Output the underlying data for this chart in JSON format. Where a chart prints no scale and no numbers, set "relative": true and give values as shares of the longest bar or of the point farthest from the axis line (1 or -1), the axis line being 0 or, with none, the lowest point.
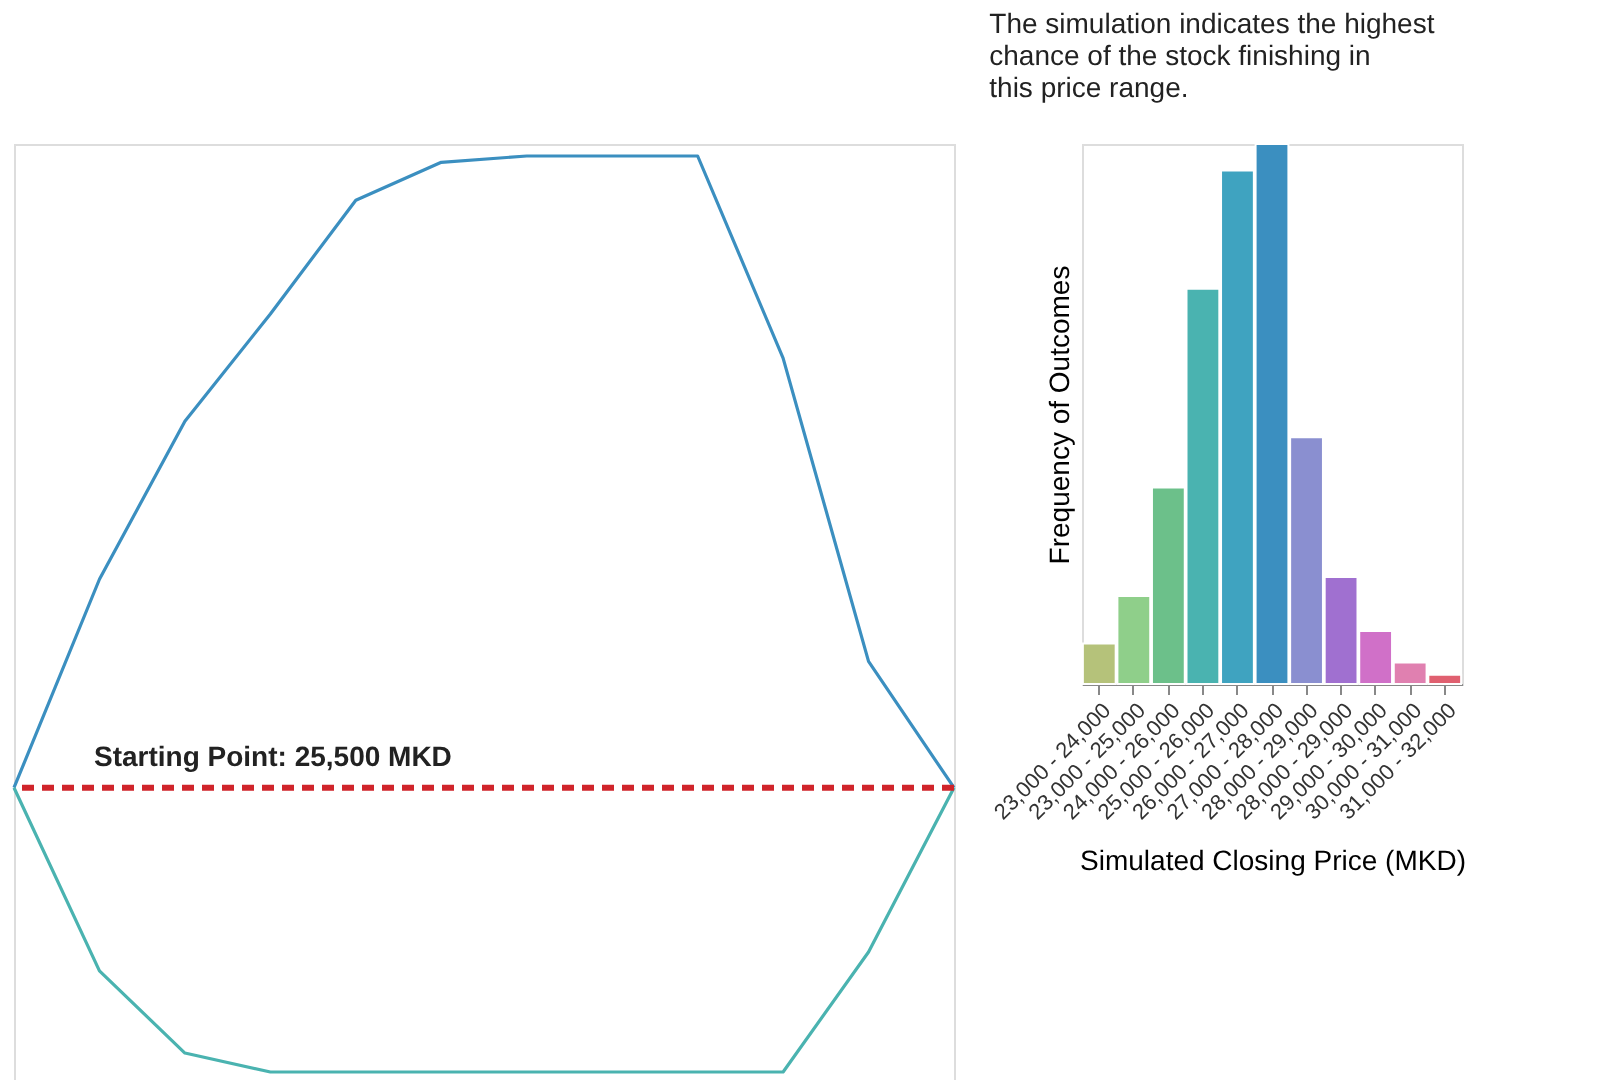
{
  "chart_data": [
    {
      "type": "line",
      "relative": true,
      "categories": [
        null,
        null,
        null,
        null,
        null,
        null,
        null,
        null,
        null,
        null,
        null,
        null
      ],
      "tick_labels": false,
      "line_style": "solid",
      "marker": "none",
      "annotations": [
        "Starting Point: 25,500 MKD"
      ],
      "series": [
        {
          "color": "#3b8fc0",
          "values": [
            0,
            0.33,
            0.58,
            0.75,
            0.93,
            0.99,
            1,
            1,
            1,
            0.68,
            0.2,
            0
          ]
        },
        {
          "color": "#4ab3b0",
          "values": [
            0,
            -0.29,
            -0.42,
            -0.45,
            -0.45,
            -0.45,
            -0.45,
            -0.45,
            -0.45,
            -0.45,
            -0.26,
            0
          ]
        }
      ],
      "ref_lines": [
        {
          "axis": "y",
          "value": 0,
          "color": "#d0242a",
          "line_style": "dashed"
        }
      ]
    },
    {
      "type": "bar",
      "relative": true,
      "tick_labels": "x",
      "grid": false,
      "xlabel": "Simulated Closing Price (MKD)",
      "ylabel": "Frequency of Outcomes",
      "annotations": [
        "The simulation indicates the highest chance of the stock finishing in this price range."
      ],
      "categories": [
        "23,000 - 24,000",
        "23,000 - 25,000",
        "24,000 - 26,000",
        "25,000 - 26,000",
        "26,000 - 27,000",
        "27,000 - 28,000",
        "28,000 - 29,000",
        "28,000 - 29,000",
        "29,000 - 30,000",
        "30,000 - 31,000",
        "31,000 - 32,000"
      ],
      "values": [
        0.075,
        0.163,
        0.364,
        0.732,
        0.951,
        1,
        0.457,
        0.198,
        0.098,
        0.04,
        0.017
      ],
      "colors": [
        "#b5c27a",
        "#8fcf8a",
        "#6cc08a",
        "#4ab3b0",
        "#3fa3c0",
        "#3b8fc0",
        "#8a8fd0",
        "#a070d0",
        "#d070c8",
        "#e080b0",
        "#e06070"
      ]
    }
  ]
}
